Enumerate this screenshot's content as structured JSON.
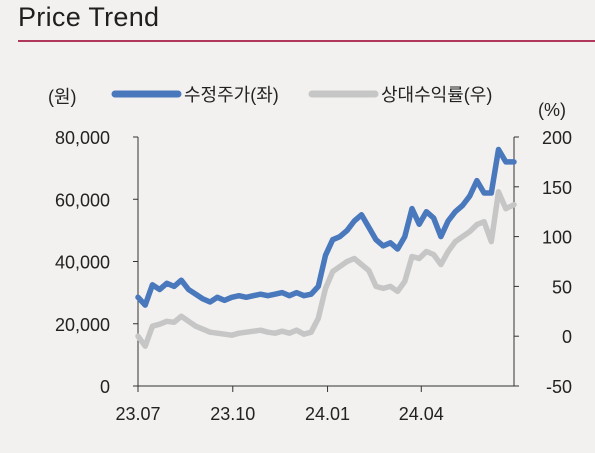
{
  "header": {
    "title": "Price Trend"
  },
  "colors": {
    "price": "#4a78bd",
    "relative": "#c6c6c6",
    "accent": "#b0385c"
  },
  "chart_data": {
    "type": "line",
    "title": "",
    "left_unit": "(원)",
    "right_unit": "(%)",
    "x_ticks": [
      "23.07",
      "23.10",
      "24.01",
      "24.04"
    ],
    "x_tick_dates": [
      "2023-07-01",
      "2023-10-01",
      "2024-01-01",
      "2024-04-01"
    ],
    "x_range": [
      "2023-07-01",
      "2024-06-30"
    ],
    "y_left": {
      "range": [
        0,
        80000
      ],
      "ticks": [
        "80,000",
        "60,000",
        "40,000",
        "20,000",
        "0"
      ],
      "tick_values": [
        80000,
        60000,
        40000,
        20000,
        0
      ]
    },
    "y_right": {
      "range": [
        -50,
        200
      ],
      "ticks": [
        "200",
        "150",
        "100",
        "50",
        "0",
        "-50"
      ],
      "tick_values": [
        200,
        150,
        100,
        50,
        0,
        -50
      ]
    },
    "grid": false,
    "legend_position": "top",
    "series": [
      {
        "name": "수정주가(좌)",
        "axis": "left",
        "points": [
          [
            "2023-07-01",
            28500
          ],
          [
            "2023-07-08",
            26000
          ],
          [
            "2023-07-15",
            32500
          ],
          [
            "2023-07-22",
            31000
          ],
          [
            "2023-07-29",
            33000
          ],
          [
            "2023-08-05",
            32000
          ],
          [
            "2023-08-12",
            34000
          ],
          [
            "2023-08-19",
            31000
          ],
          [
            "2023-08-26",
            29500
          ],
          [
            "2023-09-02",
            28000
          ],
          [
            "2023-09-09",
            27000
          ],
          [
            "2023-09-16",
            28500
          ],
          [
            "2023-09-23",
            27500
          ],
          [
            "2023-09-30",
            28500
          ],
          [
            "2023-10-07",
            29000
          ],
          [
            "2023-10-14",
            28500
          ],
          [
            "2023-10-21",
            29000
          ],
          [
            "2023-10-28",
            29500
          ],
          [
            "2023-11-04",
            29000
          ],
          [
            "2023-11-11",
            29500
          ],
          [
            "2023-11-18",
            30000
          ],
          [
            "2023-11-25",
            29000
          ],
          [
            "2023-12-02",
            30000
          ],
          [
            "2023-12-09",
            29000
          ],
          [
            "2023-12-16",
            29500
          ],
          [
            "2023-12-23",
            32000
          ],
          [
            "2023-12-30",
            42000
          ],
          [
            "2024-01-06",
            47000
          ],
          [
            "2024-01-13",
            48000
          ],
          [
            "2024-01-20",
            50000
          ],
          [
            "2024-01-27",
            53000
          ],
          [
            "2024-02-03",
            55000
          ],
          [
            "2024-02-10",
            51000
          ],
          [
            "2024-02-17",
            47000
          ],
          [
            "2024-02-24",
            45000
          ],
          [
            "2024-03-02",
            46000
          ],
          [
            "2024-03-09",
            44000
          ],
          [
            "2024-03-16",
            48000
          ],
          [
            "2024-03-23",
            57000
          ],
          [
            "2024-03-30",
            52000
          ],
          [
            "2024-04-06",
            56000
          ],
          [
            "2024-04-13",
            54000
          ],
          [
            "2024-04-20",
            48000
          ],
          [
            "2024-04-27",
            53000
          ],
          [
            "2024-05-04",
            56000
          ],
          [
            "2024-05-11",
            58000
          ],
          [
            "2024-05-18",
            61000
          ],
          [
            "2024-05-25",
            66000
          ],
          [
            "2024-06-01",
            62000
          ],
          [
            "2024-06-08",
            62000
          ],
          [
            "2024-06-15",
            76000
          ],
          [
            "2024-06-22",
            72000
          ],
          [
            "2024-06-30",
            72000
          ]
        ]
      },
      {
        "name": "상대수익률(우)",
        "axis": "right",
        "points": [
          [
            "2023-07-01",
            0
          ],
          [
            "2023-07-08",
            -10
          ],
          [
            "2023-07-15",
            10
          ],
          [
            "2023-07-22",
            12
          ],
          [
            "2023-07-29",
            15
          ],
          [
            "2023-08-05",
            14
          ],
          [
            "2023-08-12",
            20
          ],
          [
            "2023-08-19",
            15
          ],
          [
            "2023-08-26",
            10
          ],
          [
            "2023-09-02",
            7
          ],
          [
            "2023-09-09",
            4
          ],
          [
            "2023-09-16",
            3
          ],
          [
            "2023-09-23",
            2
          ],
          [
            "2023-09-30",
            1
          ],
          [
            "2023-10-07",
            3
          ],
          [
            "2023-10-14",
            4
          ],
          [
            "2023-10-21",
            5
          ],
          [
            "2023-10-28",
            6
          ],
          [
            "2023-11-04",
            4
          ],
          [
            "2023-11-11",
            3
          ],
          [
            "2023-11-18",
            5
          ],
          [
            "2023-11-25",
            3
          ],
          [
            "2023-12-02",
            6
          ],
          [
            "2023-12-09",
            2
          ],
          [
            "2023-12-16",
            4
          ],
          [
            "2023-12-23",
            18
          ],
          [
            "2023-12-30",
            48
          ],
          [
            "2024-01-06",
            65
          ],
          [
            "2024-01-13",
            70
          ],
          [
            "2024-01-20",
            75
          ],
          [
            "2024-01-27",
            78
          ],
          [
            "2024-02-03",
            72
          ],
          [
            "2024-02-10",
            66
          ],
          [
            "2024-02-17",
            50
          ],
          [
            "2024-02-24",
            48
          ],
          [
            "2024-03-02",
            50
          ],
          [
            "2024-03-09",
            45
          ],
          [
            "2024-03-16",
            55
          ],
          [
            "2024-03-23",
            80
          ],
          [
            "2024-03-30",
            78
          ],
          [
            "2024-04-06",
            85
          ],
          [
            "2024-04-13",
            82
          ],
          [
            "2024-04-20",
            72
          ],
          [
            "2024-04-27",
            85
          ],
          [
            "2024-05-04",
            95
          ],
          [
            "2024-05-11",
            100
          ],
          [
            "2024-05-18",
            105
          ],
          [
            "2024-05-25",
            112
          ],
          [
            "2024-06-01",
            115
          ],
          [
            "2024-06-08",
            95
          ],
          [
            "2024-06-15",
            145
          ],
          [
            "2024-06-22",
            128
          ],
          [
            "2024-06-30",
            132
          ]
        ]
      }
    ]
  }
}
